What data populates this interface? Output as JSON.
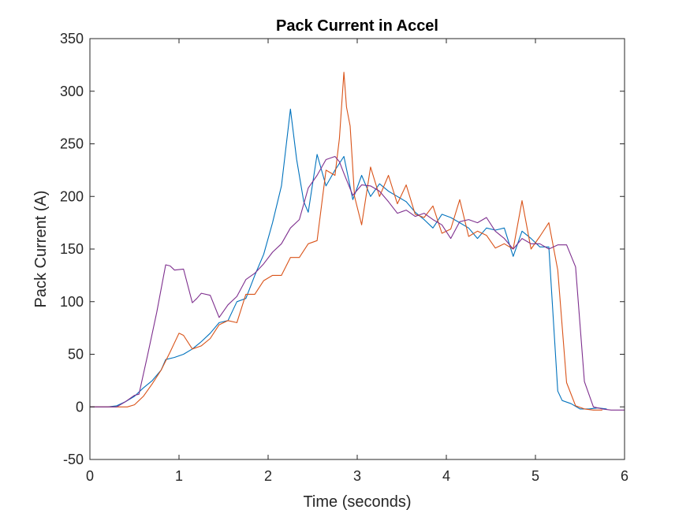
{
  "chart_data": {
    "type": "line",
    "title": "Pack Current in Accel",
    "xlabel": "Time (seconds)",
    "ylabel": "Pack Current (A)",
    "xlim": [
      0,
      6
    ],
    "ylim": [
      -50,
      350
    ],
    "xticks": [
      0,
      1,
      2,
      3,
      4,
      5,
      6
    ],
    "xtick_labels": [
      "0",
      "1",
      "2",
      "3",
      "4",
      "5",
      "6"
    ],
    "yticks": [
      -50,
      0,
      50,
      100,
      150,
      200,
      250,
      300,
      350
    ],
    "ytick_labels": [
      "-50",
      "0",
      "50",
      "100",
      "150",
      "200",
      "250",
      "300",
      "350"
    ],
    "grid": false,
    "box": true,
    "series": [
      {
        "color": "#0072BD",
        "x": [
          0,
          0.2,
          0.3,
          0.4,
          0.5,
          0.6,
          0.7,
          0.8,
          0.85,
          0.95,
          1.05,
          1.15,
          1.25,
          1.35,
          1.45,
          1.55,
          1.65,
          1.75,
          1.85,
          1.95,
          2.05,
          2.15,
          2.25,
          2.32,
          2.4,
          2.45,
          2.55,
          2.65,
          2.75,
          2.85,
          2.95,
          3.05,
          3.15,
          3.25,
          3.35,
          3.45,
          3.55,
          3.65,
          3.75,
          3.85,
          3.95,
          4.05,
          4.15,
          4.25,
          4.35,
          4.45,
          4.55,
          4.65,
          4.75,
          4.85,
          4.95,
          5.05,
          5.15,
          5.25,
          5.3,
          5.4,
          5.5,
          5.6,
          5.7,
          5.8
        ],
        "y": [
          0,
          0,
          1,
          5,
          10,
          18,
          25,
          35,
          45,
          47,
          50,
          55,
          62,
          70,
          80,
          82,
          100,
          103,
          125,
          145,
          175,
          210,
          283,
          235,
          195,
          185,
          240,
          210,
          225,
          238,
          197,
          220,
          200,
          212,
          205,
          200,
          195,
          185,
          178,
          170,
          183,
          180,
          175,
          170,
          160,
          170,
          168,
          170,
          143,
          167,
          160,
          152,
          152,
          15,
          6,
          3,
          -2,
          -2,
          -1,
          -2
        ]
      },
      {
        "color": "#D95319",
        "x": [
          0,
          0.3,
          0.42,
          0.5,
          0.6,
          0.7,
          0.8,
          0.9,
          1.0,
          1.05,
          1.15,
          1.25,
          1.35,
          1.45,
          1.55,
          1.65,
          1.75,
          1.85,
          1.95,
          2.05,
          2.15,
          2.25,
          2.35,
          2.45,
          2.55,
          2.65,
          2.75,
          2.8,
          2.85,
          2.88,
          2.92,
          2.97,
          3.05,
          3.15,
          3.25,
          3.35,
          3.45,
          3.55,
          3.65,
          3.75,
          3.85,
          3.95,
          4.05,
          4.15,
          4.25,
          4.35,
          4.45,
          4.55,
          4.65,
          4.75,
          4.85,
          4.95,
          5.05,
          5.15,
          5.25,
          5.35,
          5.45,
          5.55,
          5.65,
          5.75
        ],
        "y": [
          0,
          0,
          0,
          2,
          10,
          22,
          35,
          52,
          70,
          68,
          55,
          58,
          65,
          78,
          82,
          80,
          107,
          107,
          120,
          125,
          125,
          142,
          142,
          155,
          158,
          225,
          220,
          255,
          318,
          285,
          267,
          200,
          173,
          228,
          200,
          220,
          193,
          211,
          183,
          180,
          191,
          165,
          169,
          197,
          162,
          167,
          163,
          151,
          155,
          150,
          196,
          150,
          162,
          175,
          130,
          23,
          1,
          -2,
          -3,
          -3
        ]
      },
      {
        "color": "#7E2F8E",
        "x": [
          0,
          0.3,
          0.4,
          0.5,
          0.55,
          0.65,
          0.75,
          0.85,
          0.9,
          0.95,
          1.05,
          1.15,
          1.2,
          1.25,
          1.35,
          1.45,
          1.55,
          1.65,
          1.75,
          1.85,
          1.95,
          2.05,
          2.15,
          2.25,
          2.35,
          2.45,
          2.55,
          2.65,
          2.75,
          2.8,
          2.85,
          2.95,
          3.05,
          3.15,
          3.25,
          3.35,
          3.45,
          3.55,
          3.65,
          3.75,
          3.85,
          3.95,
          4.05,
          4.15,
          4.25,
          4.35,
          4.45,
          4.55,
          4.65,
          4.75,
          4.85,
          4.95,
          5.05,
          5.15,
          5.25,
          5.35,
          5.45,
          5.55,
          5.65,
          5.75,
          5.85,
          6.0
        ],
        "y": [
          0,
          0,
          5,
          11,
          12,
          50,
          90,
          135,
          134,
          130,
          131,
          99,
          103,
          108,
          106,
          85,
          97,
          105,
          121,
          127,
          136,
          147,
          155,
          170,
          178,
          208,
          220,
          235,
          238,
          233,
          222,
          201,
          211,
          210,
          205,
          195,
          184,
          187,
          181,
          184,
          178,
          173,
          160,
          176,
          178,
          175,
          180,
          167,
          160,
          150,
          160,
          155,
          155,
          150,
          154,
          154,
          133,
          24,
          0,
          -2,
          -3,
          -3
        ]
      }
    ]
  }
}
